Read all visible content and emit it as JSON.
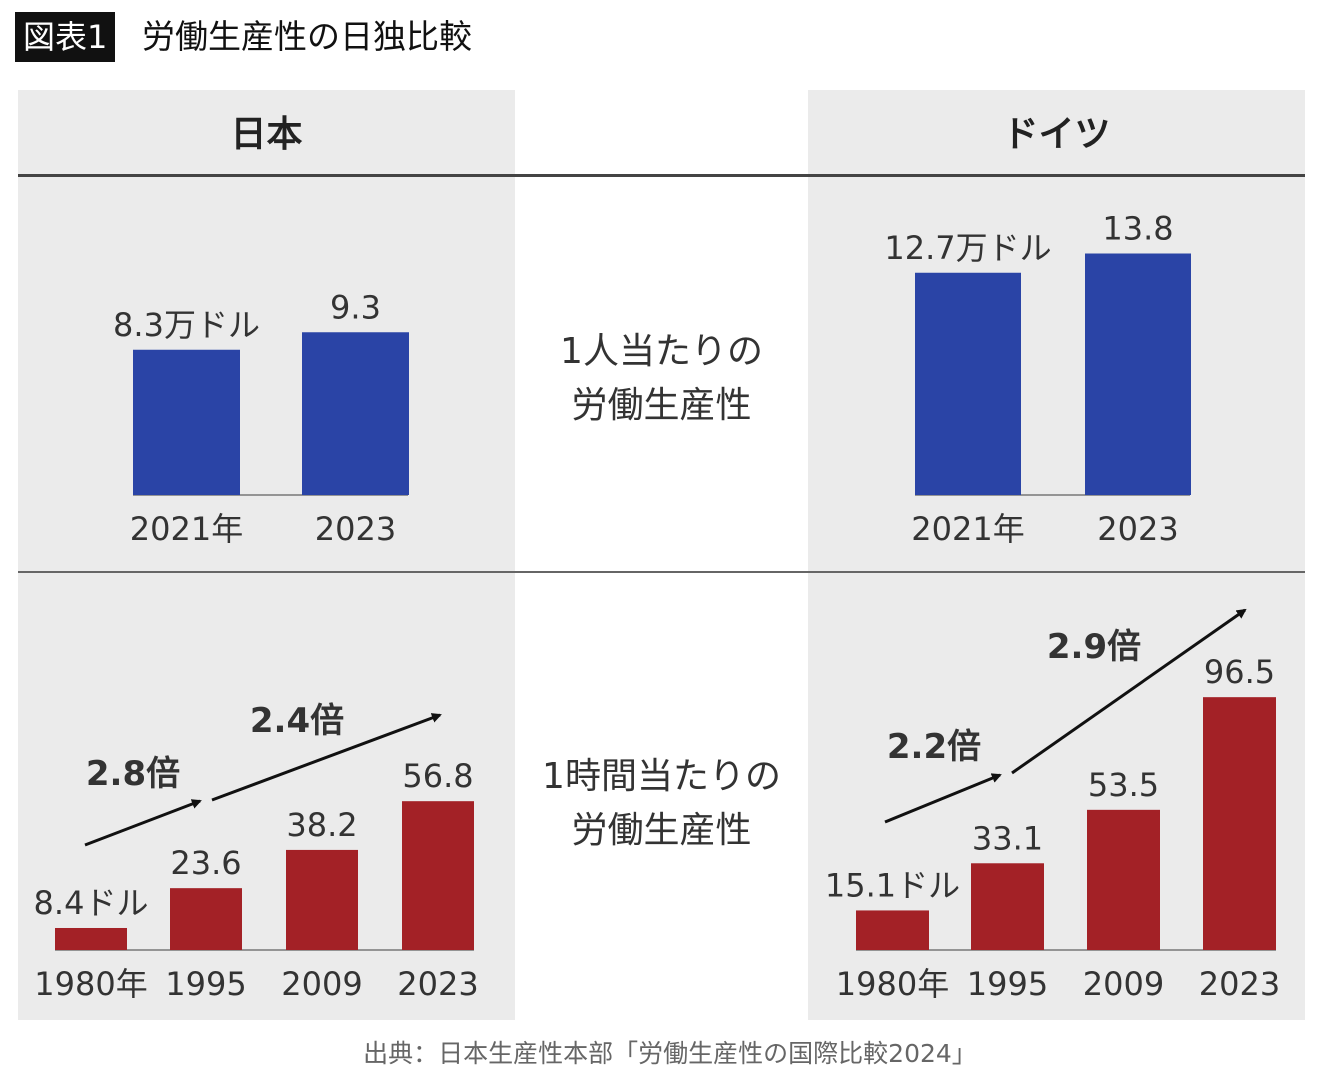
{
  "title": {
    "tag": "図表1",
    "text": "労働生産性の日独比較"
  },
  "headers": {
    "japan": "日本",
    "germany": "ドイツ"
  },
  "row_labels": {
    "per_person": [
      "1人当たりの",
      "労働生産性"
    ],
    "per_hour": [
      "1時間当たりの",
      "労働生産性"
    ]
  },
  "source": "出典：日本生産性本部「労働生産性の国際比較2024」",
  "colors": {
    "blue": "#2a44a6",
    "red": "#a32126",
    "panel": "#ebebeb"
  },
  "chart_data": [
    {
      "type": "bar",
      "title": "日本 1人当たりの労働生産性",
      "unit": "万ドル",
      "categories": [
        "2021年",
        "2023"
      ],
      "values": [
        8.3,
        9.3
      ],
      "labels": [
        "8.3万ドル",
        "9.3"
      ]
    },
    {
      "type": "bar",
      "title": "ドイツ 1人当たりの労働生産性",
      "unit": "万ドル",
      "categories": [
        "2021年",
        "2023"
      ],
      "values": [
        12.7,
        13.8
      ],
      "labels": [
        "12.7万ドル",
        "13.8"
      ]
    },
    {
      "type": "bar",
      "title": "日本 1時間当たりの労働生産性",
      "unit": "ドル",
      "categories": [
        "1980年",
        "1995",
        "2009",
        "2023"
      ],
      "values": [
        8.4,
        23.6,
        38.2,
        56.8
      ],
      "labels": [
        "8.4ドル",
        "23.6",
        "38.2",
        "56.8"
      ],
      "annotations": [
        "2.8倍",
        "2.4倍"
      ]
    },
    {
      "type": "bar",
      "title": "ドイツ 1時間当たりの労働生産性",
      "unit": "ドル",
      "categories": [
        "1980年",
        "1995",
        "2009",
        "2023"
      ],
      "values": [
        15.1,
        33.1,
        53.5,
        96.5
      ],
      "labels": [
        "15.1ドル",
        "33.1",
        "53.5",
        "96.5"
      ],
      "annotations": [
        "2.2倍",
        "2.9倍"
      ]
    }
  ]
}
